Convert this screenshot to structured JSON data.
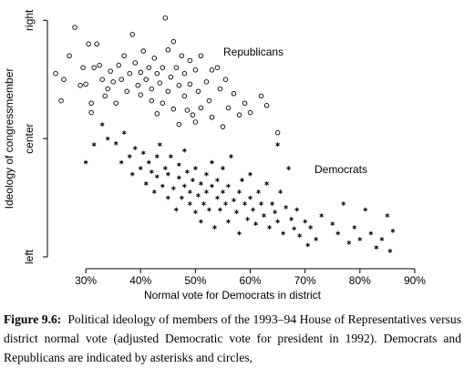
{
  "chart_data": {
    "type": "scatter",
    "x_label": "Normal vote for Democrats in district",
    "y_label": "Ideology of congressmember",
    "xlim": [
      23,
      92
    ],
    "ylim": [
      -1.1,
      1.11
    ],
    "xticks": [
      {
        "value": 30,
        "label": "30%"
      },
      {
        "value": 40,
        "label": "40%"
      },
      {
        "value": 50,
        "label": "50%"
      },
      {
        "value": 60,
        "label": "60%"
      },
      {
        "value": 70,
        "label": "70%"
      },
      {
        "value": 80,
        "label": "80%"
      },
      {
        "value": 90,
        "label": "90%"
      }
    ],
    "yticks": [
      {
        "value": -1,
        "label": "left"
      },
      {
        "value": 0,
        "label": "center"
      },
      {
        "value": 1,
        "label": "right"
      }
    ],
    "series": [
      {
        "name": "Republicans",
        "marker": "circle",
        "color": "#000000",
        "x": [
          24.5,
          25.5,
          26,
          27,
          28,
          29,
          29.5,
          30,
          30.5,
          31,
          31,
          31.5,
          32,
          32.5,
          33,
          33.5,
          34,
          34.5,
          35,
          35.5,
          36,
          36.5,
          37,
          37.5,
          38,
          38.5,
          39,
          39.5,
          40,
          40,
          40.5,
          41,
          41.5,
          42,
          42,
          42.5,
          43,
          43,
          43.5,
          44,
          44,
          44.5,
          45,
          45,
          45.5,
          46,
          46,
          46.5,
          47,
          47,
          47.5,
          48,
          48,
          48.5,
          49,
          49,
          49.5,
          50,
          50,
          50.5,
          51,
          51,
          52,
          52.5,
          53,
          53,
          54,
          54.5,
          55,
          55.5,
          56,
          57,
          58,
          59,
          60,
          62,
          63,
          65
        ],
        "values": [
          0.55,
          0.32,
          0.5,
          0.7,
          0.94,
          0.45,
          0.6,
          0.46,
          0.8,
          0.22,
          0.3,
          0.6,
          0.8,
          0.62,
          0.5,
          0.36,
          0.42,
          0.57,
          0.48,
          0.3,
          0.62,
          0.5,
          0.7,
          0.4,
          0.55,
          0.88,
          0.64,
          0.45,
          0.56,
          0.37,
          0.74,
          0.5,
          0.6,
          0.32,
          0.42,
          0.68,
          0.21,
          0.55,
          0.47,
          0.6,
          0.3,
          1.02,
          0.75,
          0.4,
          0.52,
          0.82,
          0.25,
          0.6,
          0.45,
          0.12,
          0.7,
          0.36,
          0.55,
          0.24,
          0.66,
          0.46,
          0.2,
          0.58,
          0.14,
          0.4,
          0.7,
          0.26,
          0.48,
          0.32,
          0.58,
          0.18,
          0.6,
          0.42,
          0.1,
          0.5,
          0.26,
          0.38,
          0.2,
          0.3,
          0.22,
          0.36,
          0.28,
          0.05
        ]
      },
      {
        "name": "Democrats",
        "marker": "asterisk",
        "color": "#000000",
        "x": [
          30,
          31.5,
          33,
          34,
          35.5,
          36.5,
          37,
          38,
          38.5,
          39,
          40,
          40.5,
          41,
          41.5,
          42,
          42.5,
          43,
          43,
          43.5,
          44,
          44.5,
          45,
          45,
          45.5,
          46,
          46.5,
          47,
          47,
          47.5,
          48,
          48,
          48.5,
          49,
          49,
          49.5,
          50,
          50,
          50.5,
          51,
          51,
          51.5,
          52,
          52,
          52.5,
          53,
          53,
          53.5,
          54,
          54,
          54.5,
          55,
          55,
          55.5,
          56,
          56,
          56.5,
          57,
          57.5,
          58,
          58,
          58.5,
          59,
          59.5,
          60,
          60,
          60.5,
          61,
          61.5,
          62,
          62.5,
          63,
          63.5,
          64,
          64.5,
          65,
          65,
          65.5,
          66,
          66.5,
          67,
          67.5,
          68,
          68.5,
          69,
          70,
          70.5,
          71,
          72,
          73,
          75,
          76,
          77,
          78,
          79,
          80,
          81,
          82,
          83,
          84,
          85,
          85.5,
          86
        ],
        "values": [
          -0.2,
          -0.05,
          0.12,
          0,
          -0.04,
          -0.2,
          0.05,
          -0.15,
          -0.3,
          -0.08,
          -0.25,
          -0.12,
          -0.38,
          -0.2,
          -0.28,
          -0.45,
          -0.15,
          -0.32,
          -0.05,
          -0.4,
          -0.25,
          -0.5,
          -0.3,
          -0.15,
          -0.42,
          -0.6,
          -0.33,
          -0.22,
          -0.5,
          -0.4,
          -0.1,
          -0.28,
          -0.55,
          -0.45,
          -0.35,
          -0.62,
          -0.25,
          -0.48,
          -0.38,
          -0.7,
          -0.55,
          -0.3,
          -0.45,
          -0.6,
          -0.4,
          -0.2,
          -0.75,
          -0.5,
          -0.35,
          -0.6,
          -0.45,
          -0.25,
          -0.55,
          -0.7,
          -0.4,
          -0.15,
          -0.52,
          -0.62,
          -0.45,
          -0.8,
          -0.35,
          -0.55,
          -0.68,
          -0.5,
          -0.3,
          -0.6,
          -0.72,
          -0.45,
          -0.55,
          -0.65,
          -0.38,
          -0.75,
          -0.55,
          -0.62,
          -0.05,
          -0.7,
          -0.45,
          -0.8,
          -0.58,
          -0.25,
          -0.68,
          -0.76,
          -0.6,
          -0.82,
          -0.7,
          -0.9,
          -0.75,
          -0.85,
          -0.65,
          -0.72,
          -0.8,
          -0.55,
          -0.88,
          -0.75,
          -0.85,
          -0.6,
          -0.8,
          -0.92,
          -0.85,
          -0.65,
          -0.95,
          -0.78
        ]
      }
    ]
  },
  "caption": {
    "label": "Figure 9.6:",
    "text": "Political ideology of members of the 1993–94 House of Representatives versus district normal vote (adjusted Democratic vote for president in 1992). Democrats and Republicans are indicated by asterisks and circles,"
  }
}
